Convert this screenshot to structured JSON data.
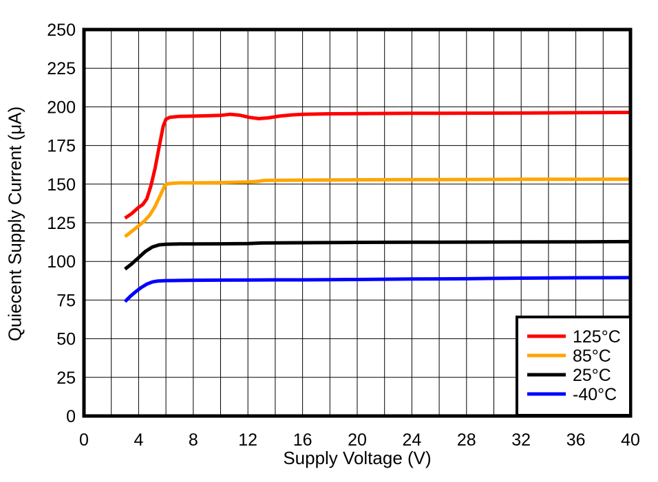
{
  "figure": {
    "background": "#FFFFFF"
  },
  "chart_data": {
    "type": "line",
    "title": "",
    "xlabel": "Supply Voltage (V)",
    "ylabel": "Quiecent Supply Current (μA)",
    "xlim": [
      0,
      40
    ],
    "ylim": [
      0,
      250
    ],
    "x_ticks": [
      0,
      4,
      8,
      12,
      16,
      20,
      24,
      28,
      32,
      36,
      40
    ],
    "y_ticks": [
      0,
      25,
      50,
      75,
      100,
      125,
      150,
      175,
      200,
      225,
      250
    ],
    "x_grid_step": 2,
    "y_grid_step": 25,
    "grid": true,
    "grid_color": "#000000",
    "border_color": "#000000",
    "legend": {
      "position": "bottom-right",
      "border_color": "#000000",
      "background": "#FFFFFF"
    },
    "series": [
      {
        "name": "125°C",
        "color": "#FF0000",
        "points": [
          [
            3,
            128
          ],
          [
            3.5,
            131
          ],
          [
            4,
            135
          ],
          [
            4.3,
            136.8
          ],
          [
            4.6,
            140.5
          ],
          [
            4.9,
            149
          ],
          [
            5.2,
            160
          ],
          [
            5.5,
            174
          ],
          [
            5.8,
            187.5
          ],
          [
            6,
            192
          ],
          [
            6.3,
            193.3
          ],
          [
            7,
            193.8
          ],
          [
            8,
            194
          ],
          [
            9,
            194.2
          ],
          [
            10,
            194.5
          ],
          [
            10.7,
            195.2
          ],
          [
            11.4,
            194.6
          ],
          [
            12.1,
            193.2
          ],
          [
            12.8,
            192.4
          ],
          [
            13.5,
            192.9
          ],
          [
            14.3,
            194
          ],
          [
            15.2,
            194.8
          ],
          [
            16,
            195.2
          ],
          [
            18,
            195.5
          ],
          [
            20,
            195.6
          ],
          [
            24,
            195.8
          ],
          [
            28,
            195.9
          ],
          [
            32,
            196
          ],
          [
            36,
            196.2
          ],
          [
            40,
            196.4
          ]
        ]
      },
      {
        "name": "85°C",
        "color": "#FFA500",
        "points": [
          [
            3,
            116
          ],
          [
            3.5,
            119.5
          ],
          [
            4,
            123
          ],
          [
            4.4,
            126
          ],
          [
            4.8,
            129.8
          ],
          [
            5.2,
            135.5
          ],
          [
            5.6,
            143
          ],
          [
            5.9,
            148.8
          ],
          [
            6.1,
            150.2
          ],
          [
            6.5,
            150.6
          ],
          [
            7,
            150.8
          ],
          [
            8,
            150.8
          ],
          [
            10,
            151
          ],
          [
            11,
            151.2
          ],
          [
            12,
            151.4
          ],
          [
            12.7,
            151.8
          ],
          [
            13.2,
            152.4
          ],
          [
            14,
            152.5
          ],
          [
            16,
            152.6
          ],
          [
            20,
            152.8
          ],
          [
            24,
            152.9
          ],
          [
            28,
            153
          ],
          [
            32,
            153.1
          ],
          [
            36,
            153.1
          ],
          [
            40,
            153.2
          ]
        ]
      },
      {
        "name": "25°C",
        "color": "#000000",
        "points": [
          [
            3,
            95
          ],
          [
            3.5,
            98.5
          ],
          [
            4,
            102.5
          ],
          [
            4.5,
            106.5
          ],
          [
            5,
            109.3
          ],
          [
            5.5,
            110.7
          ],
          [
            6,
            111.1
          ],
          [
            7,
            111.3
          ],
          [
            8,
            111.3
          ],
          [
            10,
            111.4
          ],
          [
            12,
            111.5
          ],
          [
            13,
            111.9
          ],
          [
            14,
            112
          ],
          [
            16,
            112.1
          ],
          [
            20,
            112.3
          ],
          [
            24,
            112.4
          ],
          [
            28,
            112.5
          ],
          [
            32,
            112.6
          ],
          [
            36,
            112.7
          ],
          [
            40,
            112.8
          ]
        ]
      },
      {
        "name": "-40°C",
        "color": "#0000FF",
        "points": [
          [
            3,
            74
          ],
          [
            3.4,
            77.5
          ],
          [
            3.8,
            80.5
          ],
          [
            4.2,
            83.2
          ],
          [
            4.6,
            85.3
          ],
          [
            5,
            86.7
          ],
          [
            5.4,
            87.3
          ],
          [
            6,
            87.6
          ],
          [
            7,
            87.7
          ],
          [
            8,
            87.8
          ],
          [
            10,
            87.9
          ],
          [
            12,
            88
          ],
          [
            14,
            88.1
          ],
          [
            16,
            88.1
          ],
          [
            18,
            88.2
          ],
          [
            20,
            88.3
          ],
          [
            22,
            88.5
          ],
          [
            24,
            88.6
          ],
          [
            26,
            88.7
          ],
          [
            28,
            88.8
          ],
          [
            30,
            89
          ],
          [
            32,
            89.2
          ],
          [
            34,
            89.3
          ],
          [
            36,
            89.4
          ],
          [
            40,
            89.5
          ]
        ]
      }
    ]
  }
}
